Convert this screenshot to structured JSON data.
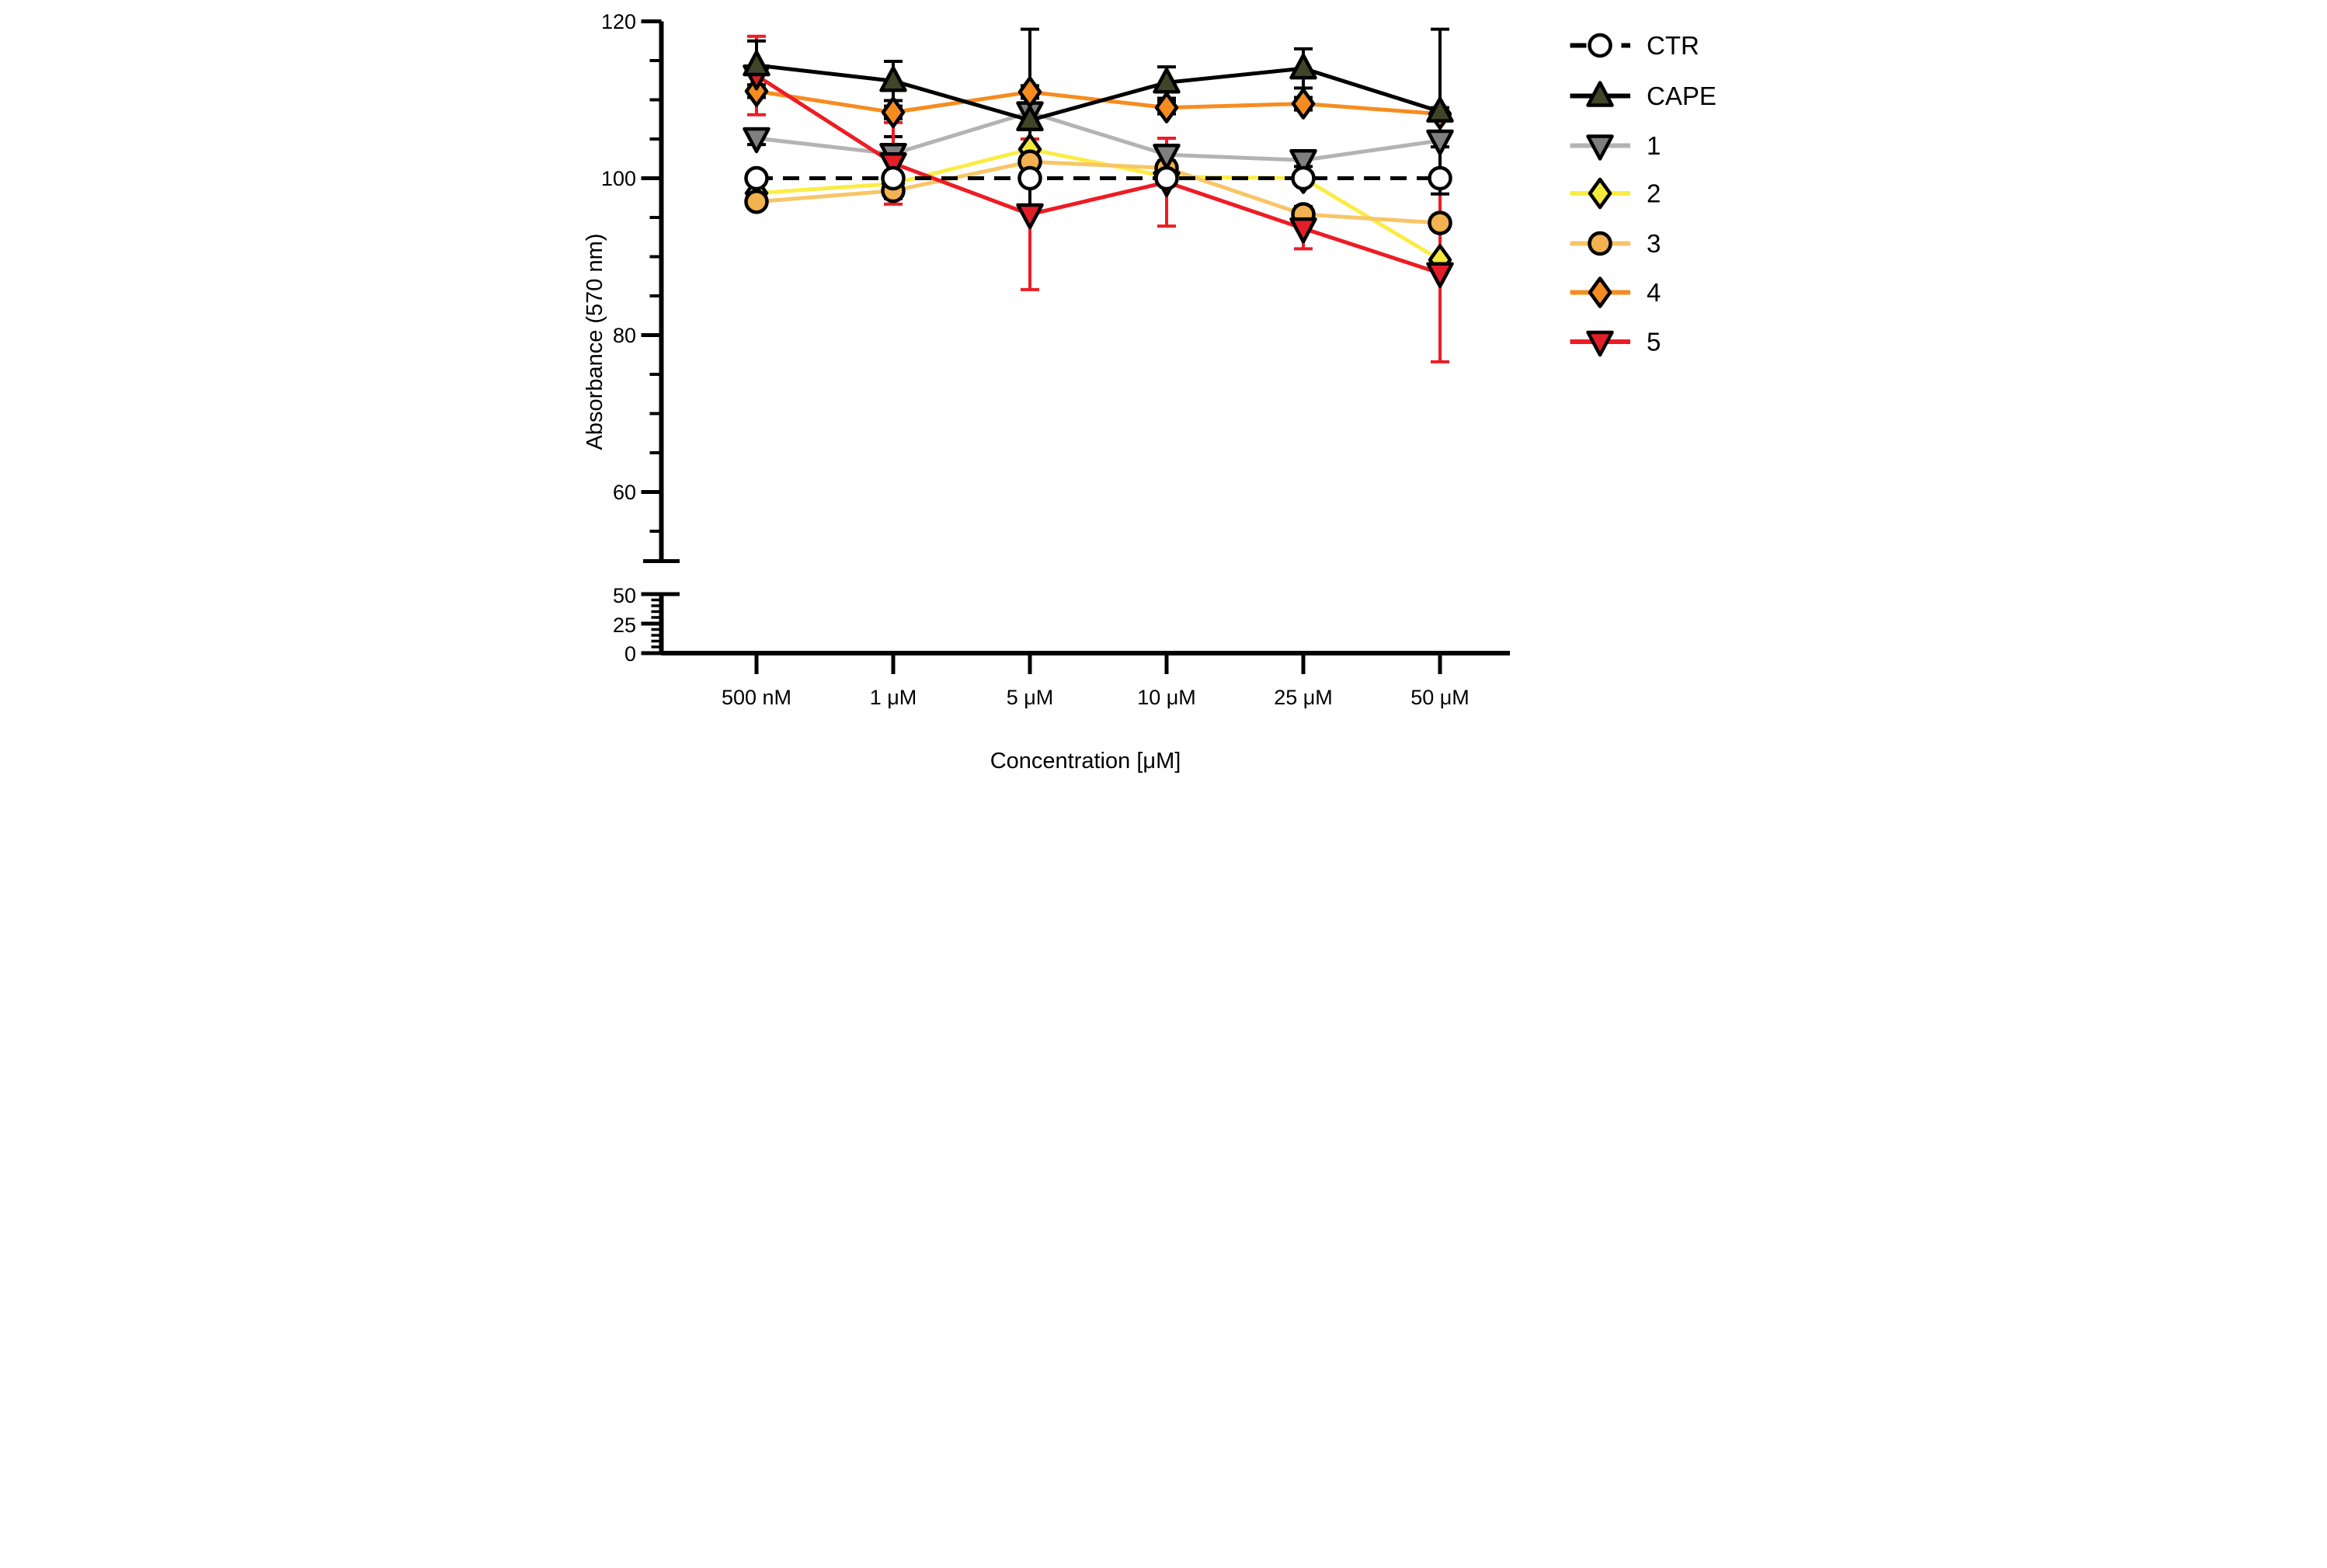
{
  "figure": {
    "background": "#ffffff",
    "axis_color": "#000000"
  },
  "chart_data": {
    "type": "line",
    "title": "",
    "xlabel": "Concentration [μM]",
    "ylabel": "Absorbance (570 nm)",
    "legend_position": "right",
    "grid": false,
    "categories": [
      "500 nM",
      "1 μM",
      "5 μM",
      "10 μM",
      "25 μM",
      "50 μM"
    ],
    "y_axis": {
      "axis_break": true,
      "upper_range": [
        51,
        123
      ],
      "lower_range": [
        0,
        50
      ],
      "ticks_upper": [
        120,
        100,
        80,
        60
      ],
      "tick_labels_upper": [
        "120",
        "100",
        "80",
        "60"
      ],
      "minor_step": 5,
      "ticks_lower": [
        50,
        25,
        0
      ],
      "tick_labels_lower": [
        "50",
        "25",
        "0"
      ]
    },
    "series": [
      {
        "name": "CTR",
        "marker": "circle",
        "marker_fill": "#ffffff",
        "line_color": "#000000",
        "dashed": true,
        "err_color": "#000000",
        "values": [
          100,
          100,
          100,
          100,
          100,
          100
        ],
        "err": [
          0,
          0,
          0,
          0,
          0,
          0
        ]
      },
      {
        "name": "CAPE",
        "marker": "triangle-up",
        "marker_fill": "#3f4526",
        "line_color": "#000000",
        "dashed": false,
        "err_color": "#000000",
        "values": [
          114.4,
          112.4,
          107.4,
          112.2,
          114.0,
          108.5
        ],
        "err": [
          3.1,
          2.5,
          11.6,
          2.0,
          2.5,
          10.5
        ]
      },
      {
        "name": "1",
        "marker": "triangle-down",
        "marker_fill": "#7f7f7f",
        "line_color": "#b3b3b3",
        "dashed": false,
        "err_color": "#000000",
        "values": [
          105.1,
          103.1,
          108.4,
          103.0,
          102.3,
          104.8
        ],
        "err": [
          0.8,
          2.2,
          0.8,
          0.8,
          0.8,
          0.8
        ]
      },
      {
        "name": "2",
        "marker": "diamond",
        "marker_fill": "#f2e93c",
        "line_color": "#fbec45",
        "dashed": false,
        "err_color": "#000000",
        "values": [
          98.1,
          99.3,
          103.7,
          100.2,
          100.0,
          89.6
        ],
        "err": [
          0.5,
          0.5,
          0.5,
          0.5,
          0.5,
          0.5
        ]
      },
      {
        "name": "3",
        "marker": "circle",
        "marker_fill": "#f1b24f",
        "line_color": "#f8c567",
        "dashed": false,
        "err_color": "#000000",
        "values": [
          97.0,
          98.4,
          102.1,
          101.3,
          95.4,
          94.3
        ],
        "err": [
          0.8,
          1.0,
          0.8,
          0.8,
          1.0,
          0.8
        ]
      },
      {
        "name": "4",
        "marker": "diamond",
        "marker_fill": "#f68c20",
        "line_color": "#f68c20",
        "dashed": false,
        "err_color": "#000000",
        "values": [
          111.1,
          108.4,
          111.0,
          109.0,
          109.5,
          108.2
        ],
        "err": [
          0.8,
          0.8,
          0.8,
          0.8,
          0.8,
          0.8
        ]
      },
      {
        "name": "5",
        "marker": "triangle-down",
        "marker_fill": "#e31e26",
        "line_color": "#ed1c24",
        "dashed": false,
        "err_color": "#ed1c24",
        "values": [
          113.1,
          101.9,
          95.4,
          99.5,
          93.6,
          87.9
        ],
        "err": [
          5.0,
          5.2,
          9.6,
          5.6,
          2.6,
          11.3
        ]
      }
    ],
    "draw_order": [
      3,
      4,
      2,
      5,
      6,
      1,
      0
    ]
  }
}
